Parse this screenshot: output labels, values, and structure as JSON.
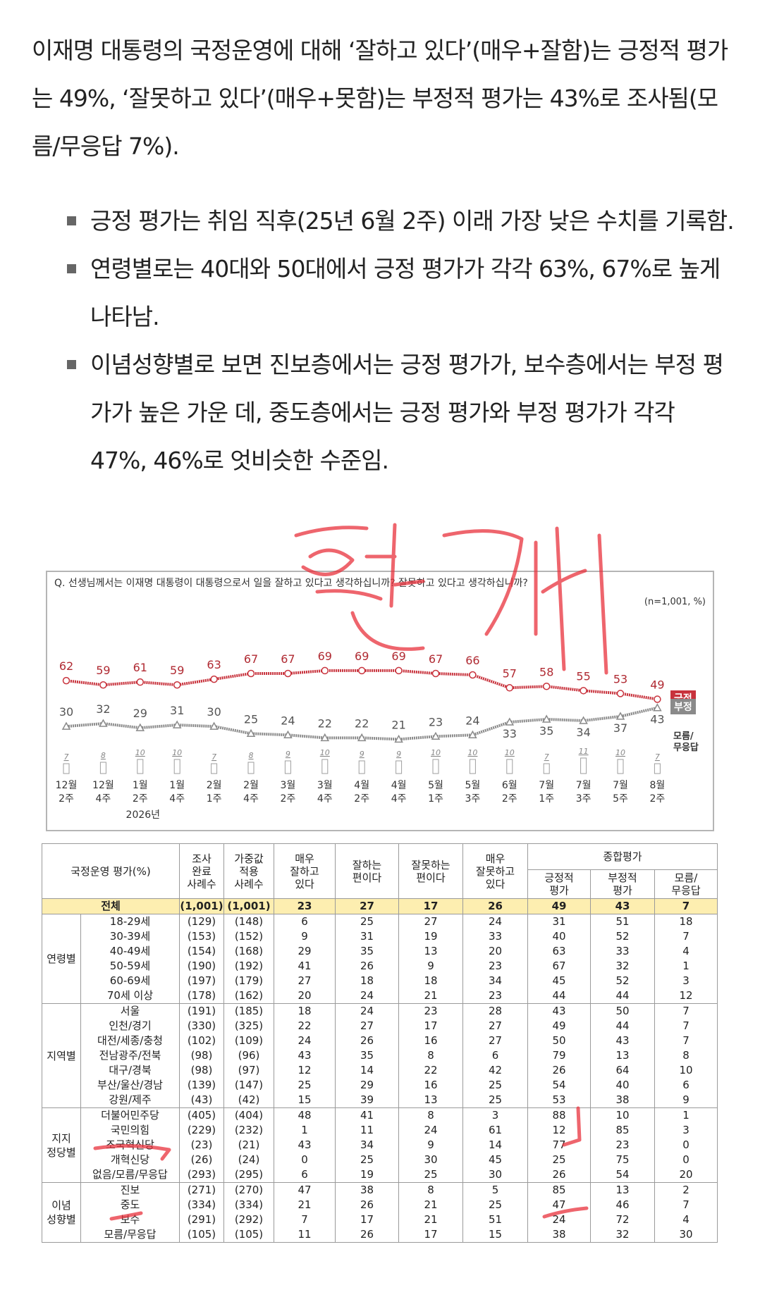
{
  "article": {
    "paragraph": "이재명 대통령의 국정운영에 대해 ‘잘하고 있다’(매우+잘함)는 긍정적 평가는 49%, ‘잘못하고 있다’(매우+못함)는 부정적 평가는 43%로 조사됨(모름/무응답 7%).",
    "bullets": [
      "긍정 평가는 취임 직후(25년 6월 2주) 이래 가장 낮은 수치를 기록함.",
      "연령별로는 40대와 50대에서 긍정 평가가 각각 63%, 67%로 높게 나타남.",
      "이념성향별로 보면 진보층에서는 긍정 평가가, 보수층에서는 부정 평가가 높은 가운 데, 중도층에서는 긍정 평가와 부정 평가가 각각 47%, 46%로 엇비슷한 수준임."
    ]
  },
  "chart_data": {
    "type": "line",
    "title": "Q. 선생님께서는 이재명 대통령이 대통령으로서 일을 잘하고 있다고 생각하십니까? 잘못하고 있다고 생각하십니까?",
    "subtitle": "(n=1,001, %)",
    "categories": [
      "12월\n2주",
      "12월\n4주",
      "1월\n2주",
      "1월\n4주",
      "2월\n1주",
      "2월\n4주",
      "3월\n2주",
      "3월\n4주",
      "4월\n2주",
      "4월\n4주",
      "5월\n1주",
      "5월\n3주",
      "6월\n2주",
      "7월\n1주",
      "7월\n3주",
      "7월\n5주",
      "8월\n2주"
    ],
    "year_label": "2026년",
    "series": [
      {
        "name": "긍정",
        "color": "#c8323c",
        "marker": "circle",
        "values": [
          62,
          59,
          61,
          59,
          63,
          67,
          67,
          69,
          69,
          69,
          67,
          66,
          57,
          58,
          55,
          53,
          49
        ]
      },
      {
        "name": "부정",
        "color": "#8a8a8a",
        "marker": "triangle",
        "values": [
          30,
          32,
          29,
          31,
          30,
          25,
          24,
          22,
          22,
          21,
          23,
          24,
          33,
          35,
          34,
          37,
          43
        ]
      },
      {
        "name": "모름/\n무응답",
        "type": "bar",
        "color": "#9e9e9e",
        "values": [
          7,
          8,
          10,
          10,
          7,
          8,
          9,
          10,
          9,
          9,
          10,
          10,
          10,
          7,
          11,
          10,
          7
        ]
      }
    ]
  },
  "table": {
    "corner": "국정운영 평가(%)",
    "columns": [
      "조사\n완료\n사례수",
      "가중값\n적용\n사례수",
      "매우\n잘하고\n있다",
      "잘하는\n편이다",
      "잘못하는\n편이다",
      "매우\n잘못하고\n있다"
    ],
    "summary_header": "종합평가",
    "summary_columns": [
      "긍정적\n평가",
      "부정적\n평가",
      "모름/\n무응답"
    ],
    "total": {
      "label": "전체",
      "cells": [
        "(1,001)",
        "(1,001)",
        23,
        27,
        17,
        26,
        49,
        43,
        7
      ]
    },
    "groups": [
      {
        "name": "연령별",
        "rows": [
          {
            "label": "18-29세",
            "cells": [
              "(129)",
              "(148)",
              6,
              25,
              27,
              24,
              31,
              51,
              18
            ]
          },
          {
            "label": "30-39세",
            "cells": [
              "(153)",
              "(152)",
              9,
              31,
              19,
              33,
              40,
              52,
              7
            ]
          },
          {
            "label": "40-49세",
            "cells": [
              "(154)",
              "(168)",
              29,
              35,
              13,
              20,
              63,
              33,
              4
            ]
          },
          {
            "label": "50-59세",
            "cells": [
              "(190)",
              "(192)",
              41,
              26,
              9,
              23,
              67,
              32,
              1
            ]
          },
          {
            "label": "60-69세",
            "cells": [
              "(197)",
              "(179)",
              27,
              18,
              18,
              34,
              45,
              52,
              3
            ]
          },
          {
            "label": "70세 이상",
            "cells": [
              "(178)",
              "(162)",
              20,
              24,
              21,
              23,
              44,
              44,
              12
            ]
          }
        ]
      },
      {
        "name": "지역별",
        "rows": [
          {
            "label": "서울",
            "cells": [
              "(191)",
              "(185)",
              18,
              24,
              23,
              28,
              43,
              50,
              7
            ]
          },
          {
            "label": "인천/경기",
            "cells": [
              "(330)",
              "(325)",
              22,
              27,
              17,
              27,
              49,
              44,
              7
            ]
          },
          {
            "label": "대전/세종/충청",
            "cells": [
              "(102)",
              "(109)",
              24,
              26,
              16,
              27,
              50,
              43,
              7
            ]
          },
          {
            "label": "전남광주/전북",
            "cells": [
              "(98)",
              "(96)",
              43,
              35,
              8,
              6,
              79,
              13,
              8
            ]
          },
          {
            "label": "대구/경북",
            "cells": [
              "(98)",
              "(97)",
              12,
              14,
              22,
              42,
              26,
              64,
              10
            ]
          },
          {
            "label": "부산/울산/경남",
            "cells": [
              "(139)",
              "(147)",
              25,
              29,
              16,
              25,
              54,
              40,
              6
            ]
          },
          {
            "label": "강원/제주",
            "cells": [
              "(43)",
              "(42)",
              15,
              39,
              13,
              25,
              53,
              38,
              9
            ]
          }
        ]
      },
      {
        "name": "지지\n정당별",
        "rows": [
          {
            "label": "더불어민주당",
            "cells": [
              "(405)",
              "(404)",
              48,
              41,
              8,
              3,
              88,
              10,
              1
            ]
          },
          {
            "label": "국민의힘",
            "cells": [
              "(229)",
              "(232)",
              1,
              11,
              24,
              61,
              12,
              85,
              3
            ]
          },
          {
            "label": "조국혁신당",
            "cells": [
              "(23)",
              "(21)",
              43,
              34,
              9,
              14,
              77,
              23,
              0
            ]
          },
          {
            "label": "개혁신당",
            "cells": [
              "(26)",
              "(24)",
              0,
              25,
              30,
              45,
              25,
              75,
              0
            ]
          },
          {
            "label": "없음/모름/무응답",
            "cells": [
              "(293)",
              "(295)",
              6,
              19,
              25,
              30,
              26,
              54,
              20
            ]
          }
        ]
      },
      {
        "name": "이념\n성향별",
        "rows": [
          {
            "label": "진보",
            "cells": [
              "(271)",
              "(270)",
              47,
              38,
              8,
              5,
              85,
              13,
              2
            ]
          },
          {
            "label": "중도",
            "cells": [
              "(334)",
              "(334)",
              21,
              26,
              21,
              25,
              47,
              46,
              7
            ]
          },
          {
            "label": "보수",
            "cells": [
              "(291)",
              "(292)",
              7,
              17,
              21,
              51,
              24,
              72,
              4
            ]
          },
          {
            "label": "모름/무응답",
            "cells": [
              "(105)",
              "(105)",
              11,
              26,
              17,
              15,
              38,
              32,
              30
            ]
          }
        ]
      }
    ]
  }
}
